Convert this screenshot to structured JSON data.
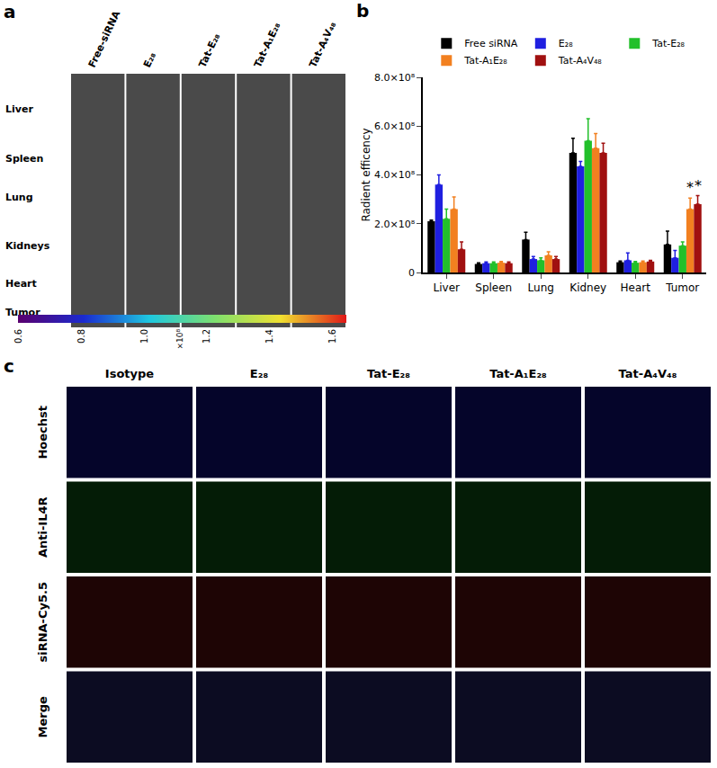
{
  "chart_data": {
    "type": "bar",
    "title": "b",
    "y_label": "Radient efficency",
    "categories": [
      "Liver",
      "Spleen",
      "Lung",
      "Kidney",
      "Heart",
      "Tumor"
    ],
    "series": [
      {
        "name": "Free siRNA",
        "color": "#000000",
        "values": [
          210000000,
          35000000,
          135000000,
          490000000,
          42000000,
          115000000
        ],
        "error": [
          5000000,
          5000000,
          30000000,
          60000000,
          5000000,
          55000000
        ]
      },
      {
        "name": "E₂₈",
        "color": "#1f1fe0",
        "values": [
          360000000,
          38000000,
          55000000,
          435000000,
          50000000,
          60000000
        ],
        "error": [
          40000000,
          5000000,
          10000000,
          20000000,
          30000000,
          30000000
        ]
      },
      {
        "name": "Tat-E₂₈",
        "color": "#22c02a",
        "values": [
          220000000,
          38000000,
          50000000,
          540000000,
          40000000,
          110000000
        ],
        "error": [
          40000000,
          5000000,
          10000000,
          90000000,
          5000000,
          15000000
        ]
      },
      {
        "name": "Tat-A₁E₂₈",
        "color": "#f28020",
        "values": [
          260000000,
          40000000,
          70000000,
          510000000,
          42000000,
          260000000
        ],
        "error": [
          50000000,
          5000000,
          15000000,
          60000000,
          5000000,
          45000000
        ]
      },
      {
        "name": "Tat-A₄V₄₈",
        "color": "#a01010",
        "values": [
          95000000,
          38000000,
          55000000,
          490000000,
          45000000,
          280000000
        ],
        "error": [
          30000000,
          5000000,
          10000000,
          40000000,
          5000000,
          35000000
        ]
      }
    ],
    "ylim": [
      0,
      800000000
    ],
    "yticks": [
      0,
      {
        "value": 200000000,
        "label": "2.0×10⁸"
      },
      {
        "value": 400000000,
        "label": "4.0×10⁸"
      },
      {
        "value": 600000000,
        "label": "6.0×10⁸"
      },
      {
        "value": 800000000,
        "label": "8.0×10⁸"
      }
    ],
    "annotations": [
      {
        "text": "*",
        "category": "Tumor",
        "series": "Tat-A₁E₂₈"
      },
      {
        "text": "*",
        "category": "Tumor",
        "series": "Tat-A₄V₄₈"
      }
    ],
    "grid": false,
    "legend": "top"
  },
  "panel_a": {
    "label": "a",
    "columns": [
      "Free-siRNA",
      "E₂₈",
      "Tat-E₂₈",
      "Tat-A₁E₂₈",
      "Tat-A₄V₄₈"
    ],
    "rows": [
      "Liver",
      "Spleen",
      "Lung",
      "Kidneys",
      "Heart",
      "Tumor"
    ],
    "colorbar_ticks": [
      "0.6",
      "0.8",
      "1.0",
      "1.2",
      "1.4",
      "1.6"
    ],
    "colorbar_unit": "×10⁸"
  },
  "panel_c": {
    "label": "c",
    "columns": [
      "Isotype",
      "E₂₈",
      "Tat-E₂₈",
      "Tat-A₁E₂₈",
      "Tat-A₄V₄₈"
    ],
    "rows": [
      "Hoechst",
      "Anti-IL4R",
      "siRNA-Cy5.5",
      "Merge"
    ]
  }
}
